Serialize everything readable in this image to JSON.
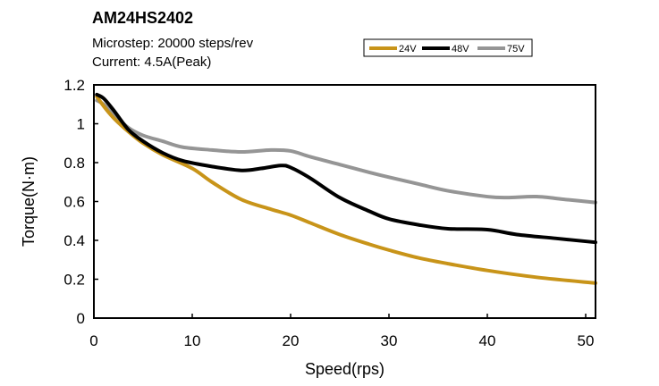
{
  "chart_data": {
    "type": "line",
    "title": "AM24HS2402",
    "subtitle_lines": [
      "Microstep: 20000 steps/rev",
      "Current: 4.5A(Peak)"
    ],
    "xlabel": "Speed(rps)",
    "ylabel": "Torque(N·m)",
    "xlim": [
      0,
      51
    ],
    "ylim": [
      0,
      1.2
    ],
    "xticks": [
      0,
      10,
      20,
      30,
      40,
      50
    ],
    "xtick_labels": [
      "0",
      "10",
      "20",
      "30",
      "40",
      "50"
    ],
    "yticks": [
      0,
      0.2,
      0.4,
      0.6,
      0.8,
      1.0,
      1.2
    ],
    "ytick_labels": [
      "0",
      "0.2",
      "0.4",
      "0.6",
      "0.8",
      "1",
      "1.2"
    ],
    "grid": false,
    "legend_position": "top-right",
    "series": [
      {
        "name": "24V",
        "color": "#C89419",
        "x": [
          0.3,
          1,
          2,
          3.5,
          5,
          7,
          10,
          12,
          15,
          18,
          20,
          22,
          25,
          28,
          30,
          33,
          36,
          40,
          45,
          51
        ],
        "y": [
          1.14,
          1.09,
          1.03,
          0.96,
          0.9,
          0.84,
          0.77,
          0.7,
          0.61,
          0.56,
          0.53,
          0.49,
          0.43,
          0.38,
          0.35,
          0.31,
          0.28,
          0.245,
          0.21,
          0.18
        ]
      },
      {
        "name": "48V",
        "color": "#000000",
        "x": [
          0.3,
          1,
          2,
          3.5,
          5,
          7,
          9,
          12,
          15,
          17,
          19,
          20,
          22,
          25,
          28,
          30,
          33,
          36,
          40,
          43,
          47,
          51
        ],
        "y": [
          1.15,
          1.13,
          1.07,
          0.97,
          0.91,
          0.85,
          0.81,
          0.78,
          0.76,
          0.77,
          0.785,
          0.775,
          0.72,
          0.62,
          0.55,
          0.51,
          0.48,
          0.46,
          0.455,
          0.43,
          0.41,
          0.39
        ]
      },
      {
        "name": "75V",
        "color": "#959595",
        "x": [
          0.3,
          1,
          2,
          3.5,
          5,
          7,
          9,
          12,
          15,
          18,
          20,
          22,
          25,
          28,
          30,
          33,
          36,
          40,
          42,
          45,
          48,
          51
        ],
        "y": [
          1.12,
          1.1,
          1.05,
          0.98,
          0.94,
          0.91,
          0.88,
          0.865,
          0.855,
          0.865,
          0.86,
          0.83,
          0.79,
          0.75,
          0.725,
          0.69,
          0.655,
          0.625,
          0.62,
          0.625,
          0.61,
          0.595
        ]
      }
    ]
  }
}
